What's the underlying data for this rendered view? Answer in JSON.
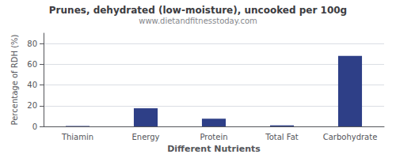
{
  "chart_data": {
    "type": "bar",
    "title": "Prunes, dehydrated (low-moisture), uncooked per 100g",
    "subtitle": "www.dietandfitnesstoday.com",
    "xlabel": "Different Nutrients",
    "ylabel": "Percentage of RDH (%)",
    "categories": [
      "Thiamin",
      "Energy",
      "Protein",
      "Total Fat",
      "Carbohydrate"
    ],
    "values": [
      0.4,
      17.5,
      7.5,
      1.0,
      68.0
    ],
    "color": "#2e3f87",
    "ylim": [
      0,
      90
    ],
    "yticks": [
      0,
      20,
      40,
      60,
      80
    ],
    "grid": true
  }
}
